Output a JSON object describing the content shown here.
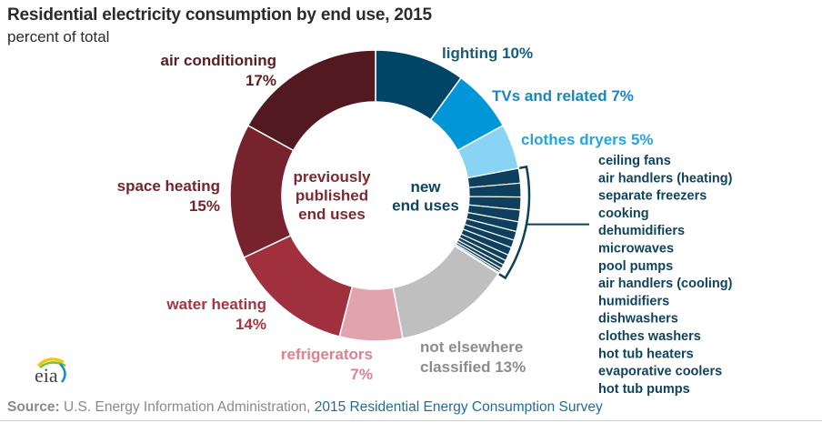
{
  "header": {
    "title": "Residential electricity consumption by end use, 2015",
    "subtitle": "percent of total"
  },
  "footer": {
    "source_label": "Source:",
    "source_text": "U.S. Energy Information Administration,",
    "source_link": "2015 Residential Energy Consumption Survey"
  },
  "logo": {
    "text": "eia"
  },
  "chart_data": {
    "type": "pie",
    "variant": "donut",
    "title": "Residential electricity consumption by end use, 2015",
    "subtitle": "percent of total",
    "start": "12 o'clock, clockwise",
    "center_labels": {
      "left": [
        "previously",
        "published",
        "end uses"
      ],
      "right": [
        "new",
        "end uses"
      ]
    },
    "slices": [
      {
        "name": "lighting",
        "label": "lighting 10%",
        "value": 10,
        "color": "#004466",
        "label_color": "#175c7d"
      },
      {
        "name": "TVs and related",
        "label": "TVs and related 7%",
        "value": 7,
        "color": "#0096d7",
        "label_color": "#1a86bb"
      },
      {
        "name": "clothes dryers",
        "label": "clothes dryers 5%",
        "value": 5,
        "color": "#89d3f5",
        "label_color": "#2aa3d8"
      },
      {
        "name": "new end uses",
        "label": "",
        "value": 12,
        "color": "#0e3f5c",
        "group": true
      },
      {
        "name": "not elsewhere classified",
        "label": "not elsewhere\nclassified 13%",
        "value": 13,
        "color": "#bfbfbf",
        "label_color": "#8c8c8c"
      },
      {
        "name": "refrigerators",
        "label": "refrigerators\n7%",
        "value": 7,
        "color": "#e2a4ac",
        "label_color": "#d9838f"
      },
      {
        "name": "water heating",
        "label": "water heating\n14%",
        "value": 14,
        "color": "#a0303d",
        "label_color": "#a8343f"
      },
      {
        "name": "space heating",
        "label": "space heating\n15%",
        "value": 15,
        "color": "#76232e",
        "label_color": "#76232e"
      },
      {
        "name": "air conditioning",
        "label": "air conditioning\n17%",
        "value": 17,
        "color": "#521a20",
        "label_color": "#5a1d24"
      }
    ],
    "new_end_uses": {
      "color": "#0e3f5c",
      "items": [
        {
          "name": "ceiling fans",
          "value": 1.5
        },
        {
          "name": "air handlers (heating)",
          "value": 1.4
        },
        {
          "name": "separate freezers",
          "value": 1.3
        },
        {
          "name": "cooking",
          "value": 1.2
        },
        {
          "name": "dehumidifiers",
          "value": 1.0
        },
        {
          "name": "microwaves",
          "value": 0.9
        },
        {
          "name": "pool pumps",
          "value": 0.8
        },
        {
          "name": "air handlers (cooling)",
          "value": 0.8
        },
        {
          "name": "humidifiers",
          "value": 0.6
        },
        {
          "name": "dishwashers",
          "value": 0.5
        },
        {
          "name": "clothes washers",
          "value": 0.4
        },
        {
          "name": "hot tub heaters",
          "value": 0.3
        },
        {
          "name": "evaporative coolers",
          "value": 0.2
        },
        {
          "name": "hot tub pumps",
          "value": 0.1
        }
      ]
    }
  }
}
